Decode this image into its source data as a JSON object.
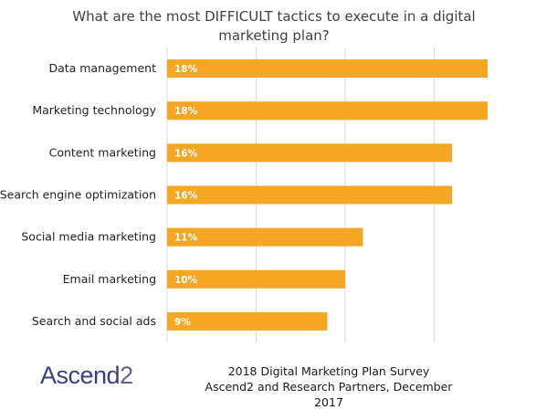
{
  "chart_data": {
    "type": "bar",
    "orientation": "horizontal",
    "title": "What are the most DIFFICULT tactics to execute in a digital marketing plan?",
    "categories": [
      "Data management",
      "Marketing technology",
      "Content marketing",
      "Search engine optimization",
      "Social media marketing",
      "Email marketing",
      "Search and social ads"
    ],
    "values": [
      18,
      18,
      16,
      16,
      11,
      10,
      9
    ],
    "value_labels": [
      "18%",
      "18%",
      "16%",
      "16%",
      "11%",
      "10%",
      "9%"
    ],
    "xlim": [
      0,
      20
    ],
    "grid": true,
    "bar_color": "#f5a623"
  },
  "footer": {
    "line1": "2018 Digital Marketing Plan Survey",
    "line2": "Ascend2 and Research Partners, December 2017"
  },
  "logo": {
    "text": "Ascend",
    "suffix": "2"
  }
}
